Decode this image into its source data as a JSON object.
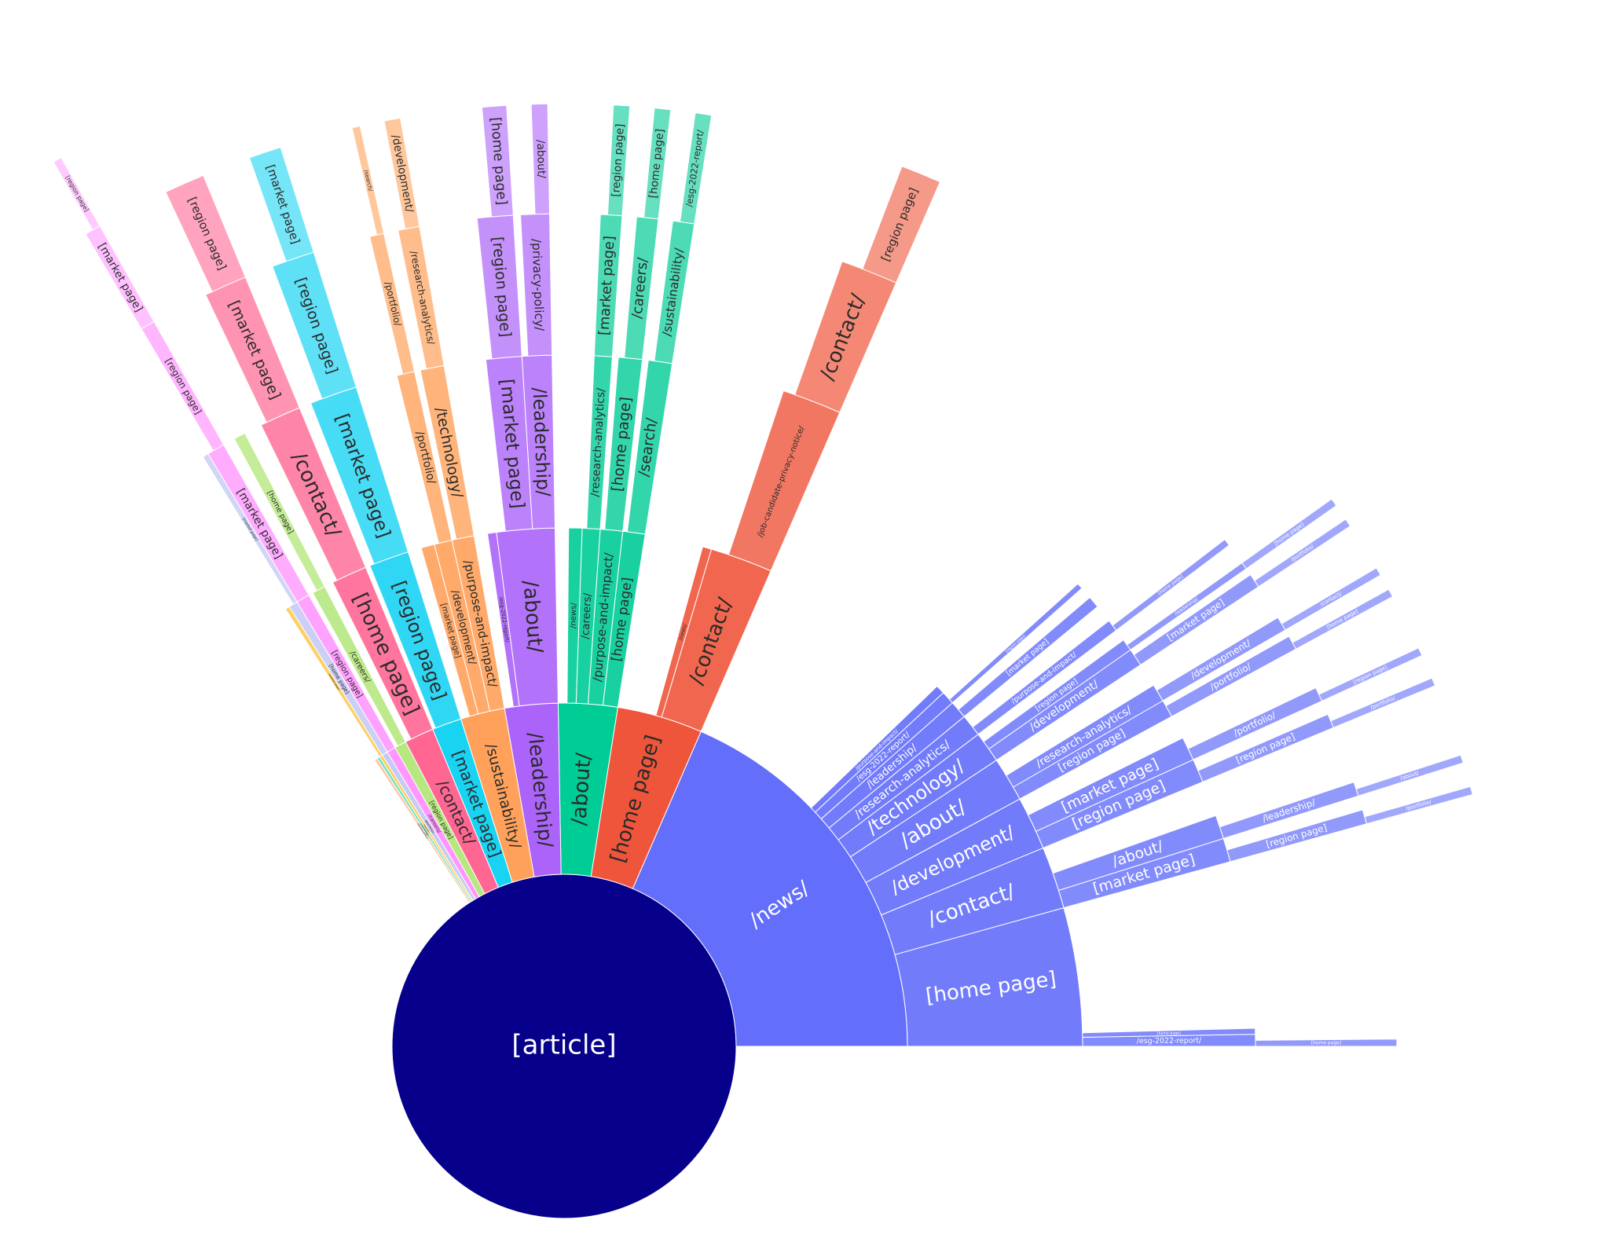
{
  "chart_data": {
    "type": "sunburst",
    "root_label": "[article]",
    "root_color": "#07008a",
    "nodes": [
      {
        "label": "/news/",
        "value": 133,
        "color": "#636efa",
        "children": [
          {
            "label": "[home page]",
            "value": 31,
            "children": [
              {
                "label": "/esg-2022-report/",
                "value": 2,
                "children": [
                  {
                    "label": "[home page]",
                    "value": 1
                  }
                ]
              },
              {
                "label": "[home page]",
                "value": 1
              }
            ]
          },
          {
            "label": "/contact/",
            "value": 14,
            "children": [
              {
                "label": "[market page]",
                "value": 4,
                "children": [
                  {
                    "label": "[region page]",
                    "value": 2,
                    "children": [
                      {
                        "label": "/portfolio/",
                        "value": 1
                      }
                    ]
                  }
                ]
              },
              {
                "label": "/about/",
                "value": 4,
                "children": [
                  {
                    "label": "/leadership/",
                    "value": 2,
                    "children": [
                      {
                        "label": "/about/",
                        "value": 1
                      }
                    ]
                  }
                ]
              }
            ]
          },
          {
            "label": "/development/",
            "value": 12,
            "children": [
              {
                "label": "[region page]",
                "value": 4,
                "children": [
                  {
                    "label": "[region page]",
                    "value": 2,
                    "children": [
                      {
                        "label": "/portfolio/",
                        "value": 1
                      }
                    ]
                  }
                ]
              },
              {
                "label": "[market page]",
                "value": 4,
                "children": [
                  {
                    "label": "/portfolio/",
                    "value": 2,
                    "children": [
                      {
                        "label": "[region page]",
                        "value": 1
                      }
                    ]
                  }
                ]
              }
            ]
          },
          {
            "label": "/about/",
            "value": 10,
            "children": [
              {
                "label": "[region page]",
                "value": 3,
                "children": [
                  {
                    "label": "/portfolio/",
                    "value": 2,
                    "children": [
                      {
                        "label": "[home page]",
                        "value": 1
                      }
                    ]
                  }
                ]
              },
              {
                "label": "/research-analytics/",
                "value": 3,
                "children": [
                  {
                    "label": "/development/",
                    "value": 2,
                    "children": [
                      {
                        "label": "/contact/",
                        "value": 1
                      }
                    ]
                  }
                ]
              }
            ]
          },
          {
            "label": "/technology/",
            "value": 7,
            "children": [
              {
                "label": "/development/",
                "value": 3,
                "children": [
                  {
                    "label": "[market page]",
                    "value": 2,
                    "children": [
                      {
                        "label": "/portfolio/",
                        "value": 1
                      }
                    ]
                  }
                ]
              },
              {
                "label": "[region page]",
                "value": 2,
                "children": [
                  {
                    "label": "/leadership/",
                    "value": 1,
                    "children": [
                      {
                        "label": "[home page]",
                        "value": 1
                      }
                    ]
                  }
                ]
              }
            ]
          },
          {
            "label": "/research-analytics/",
            "value": 5,
            "children": [
              {
                "label": "/purpose-and-impact/",
                "value": 2,
                "children": [
                  {
                    "label": "[home page]",
                    "value": 1
                  }
                ]
              }
            ]
          },
          {
            "label": "/leadership/",
            "value": 4,
            "children": [
              {
                "label": "[market page]",
                "value": 2
              }
            ]
          },
          {
            "label": "/esg-2022-report/",
            "value": 3,
            "children": [
              {
                "label": "[region page]",
                "value": 1
              }
            ]
          },
          {
            "label": "/purpose-and-impact/",
            "value": 2
          }
        ]
      },
      {
        "label": "[home page]",
        "value": 29,
        "color": "#ef553b",
        "children": [
          {
            "label": "/contact/",
            "value": 14,
            "children": [
              {
                "label": "/job-candidate-privacy-notice/",
                "value": 10,
                "children": [
                  {
                    "label": "/contact/",
                    "value": 8,
                    "children": [
                      {
                        "label": "[region page]",
                        "value": 5
                      }
                    ]
                  }
                ]
              }
            ]
          },
          {
            "label": "/news/",
            "value": 2
          }
        ]
      },
      {
        "label": "/about/",
        "value": 20,
        "color": "#00cc96",
        "children": [
          {
            "label": "[home page]",
            "value": 5,
            "children": [
              {
                "label": "/search/",
                "value": 4,
                "children": [
                  {
                    "label": "/sustainability/",
                    "value": 3,
                    "children": [
                      {
                        "label": "/esg-2022-report/",
                        "value": 2
                      }
                    ]
                  }
                ]
              }
            ]
          },
          {
            "label": "/purpose-and-impact/",
            "value": 5,
            "children": [
              {
                "label": "[home page]",
                "value": 4,
                "children": [
                  {
                    "label": "/careers/",
                    "value": 3,
                    "children": [
                      {
                        "label": "[home page]",
                        "value": 2
                      }
                    ]
                  }
                ]
              }
            ]
          },
          {
            "label": "/careers/",
            "value": 4,
            "children": [
              {
                "label": "/research-analytics/",
                "value": 3,
                "children": [
                  {
                    "label": "[market page]",
                    "value": 3,
                    "children": [
                      {
                        "label": "[region page]",
                        "value": 2
                      }
                    ]
                  }
                ]
              }
            ]
          },
          {
            "label": "/news/",
            "value": 3
          }
        ]
      },
      {
        "label": "/leadership/",
        "value": 18,
        "color": "#ab63fa",
        "children": [
          {
            "label": "/about/",
            "value": 13,
            "children": [
              {
                "label": "/leadership/",
                "value": 5,
                "children": [
                  {
                    "label": "/privacy-policy/",
                    "value": 4,
                    "children": [
                      {
                        "label": "/about/",
                        "value": 2
                      }
                    ]
                  }
                ]
              },
              {
                "label": "[market page]",
                "value": 6,
                "children": [
                  {
                    "label": "[region page]",
                    "value": 5,
                    "children": [
                      {
                        "label": "[home page]",
                        "value": 3
                      }
                    ]
                  }
                ]
              }
            ]
          },
          {
            "label": "/esg-2022-report/",
            "value": 2
          }
        ]
      },
      {
        "label": "/sustainability/",
        "value": 15,
        "color": "#ffa15a",
        "children": [
          {
            "label": "/purpose-and-impact/",
            "value": 5,
            "children": [
              {
                "label": "/technology/",
                "value": 4,
                "children": [
                  {
                    "label": "/research-analytics/",
                    "value": 3,
                    "children": [
                      {
                        "label": "/development/",
                        "value": 2
                      }
                    ]
                  }
                ]
              }
            ]
          },
          {
            "label": "/development/",
            "value": 4,
            "children": [
              {
                "label": "/portfolio/",
                "value": 3,
                "children": [
                  {
                    "label": "/portfolio/",
                    "value": 2,
                    "children": [
                      {
                        "label": "/search/",
                        "value": 1
                      }
                    ]
                  }
                ]
              }
            ]
          },
          {
            "label": "[market page]",
            "value": 3
          }
        ]
      },
      {
        "label": "[market page]",
        "value": 10,
        "color": "#19d3f3",
        "children": [
          {
            "label": "[region page]",
            "value": 9,
            "children": [
              {
                "label": "[market page]",
                "value": 8,
                "children": [
                  {
                    "label": "[region page]",
                    "value": 6,
                    "children": [
                      {
                        "label": "[market page]",
                        "value": 4
                      }
                    ]
                  }
                ]
              }
            ]
          }
        ]
      },
      {
        "label": "/contact/",
        "value": 10,
        "color": "#ff6692",
        "children": [
          {
            "label": "[home page]",
            "value": 8,
            "children": [
              {
                "label": "/contact/",
                "value": 7,
                "children": [
                  {
                    "label": "[market page]",
                    "value": 6,
                    "children": [
                      {
                        "label": "[region page]",
                        "value": 5
                      }
                    ]
                  }
                ]
              }
            ]
          }
        ]
      },
      {
        "label": "[region page]",
        "value": 4,
        "color": "#b6e880",
        "children": [
          {
            "label": "/careers/",
            "value": 3,
            "children": [
              {
                "label": "[home page]",
                "value": 2
              }
            ]
          }
        ]
      },
      {
        "label": "/careers/",
        "value": 3,
        "color": "#ff97ff",
        "children": [
          {
            "label": "[region page]",
            "value": 3,
            "children": [
              {
                "label": "[market page]",
                "value": 3,
                "children": [
                  {
                    "label": "[region page]",
                    "value": 2,
                    "children": [
                      {
                        "label": "[market page]",
                        "value": 2,
                        "children": [
                          {
                            "label": "[region page]",
                            "value": 1
                          }
                        ]
                      }
                    ]
                  }
                ]
              }
            ]
          }
        ]
      },
      {
        "label": "/portfolio/",
        "value": 2,
        "color": "#c6cbf5",
        "children": [
          {
            "label": "[home page]",
            "value": 2,
            "children": [
              {
                "label": "[market page]",
                "value": 1
              }
            ]
          }
        ]
      },
      {
        "label": "/search/",
        "value": 1,
        "color": "#fecb52",
        "children": [
          {
            "label": "[market page]",
            "value": 1
          }
        ]
      },
      {
        "label": "/technology/",
        "value": 1,
        "color": "#6fe3c0"
      },
      {
        "label": "/privacy-policy/",
        "value": 1,
        "color": "#ffc4a8"
      }
    ]
  }
}
